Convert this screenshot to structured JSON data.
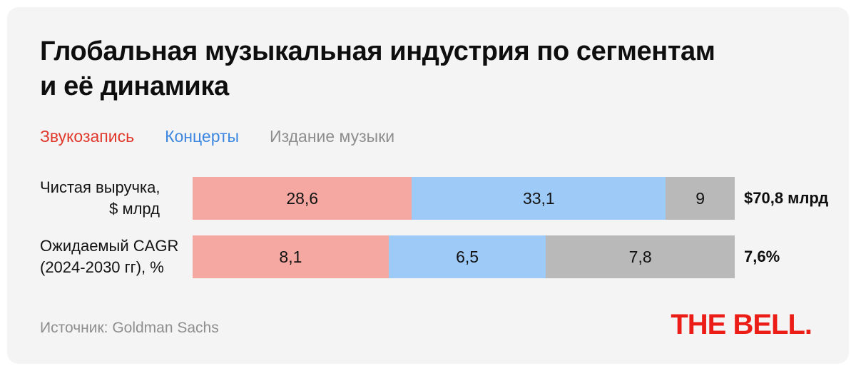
{
  "title": {
    "lines": [
      "Глобальная музыкальная индустрия по сегментам",
      "и её динамика"
    ]
  },
  "legend": {
    "items": [
      {
        "label": "Звукозапись",
        "color": "#e0382b"
      },
      {
        "label": "Концерты",
        "color": "#3e87e0"
      },
      {
        "label": "Издание музыки",
        "color": "#8e8e8e"
      }
    ]
  },
  "chart_data": {
    "type": "bar",
    "orientation": "horizontal",
    "stacked": true,
    "normalized_rows": true,
    "title": "Глобальная музыкальная индустрия по сегментам и её динамика",
    "segments": [
      "Звукозапись",
      "Концерты",
      "Издание музыки"
    ],
    "segment_colors": [
      "#f5a8a1",
      "#9ecaf8",
      "#b9b9b9"
    ],
    "rows": [
      {
        "label": "Чистая выручка, $ млрд",
        "label_lines": [
          "Чистая выручка,",
          "$ млрд"
        ],
        "values": [
          28.6,
          33.1,
          9
        ],
        "value_labels": [
          "28,6",
          "33,1",
          "9"
        ],
        "total_label": "$70,8 млрд"
      },
      {
        "label": "Ожидаемый CAGR (2024-2030 гг), %",
        "label_lines": [
          "Ожидаемый CAGR",
          "(2024-2030 гг), %"
        ],
        "values": [
          8.1,
          6.5,
          7.8
        ],
        "value_labels": [
          "8,1",
          "6,5",
          "7,8"
        ],
        "total_label": "7,6%"
      }
    ],
    "source": "Goldman Sachs"
  },
  "footer": {
    "source": "Источник: Goldman Sachs",
    "logo_text": "THE BELL.",
    "logo_color": "#ec1d16"
  }
}
